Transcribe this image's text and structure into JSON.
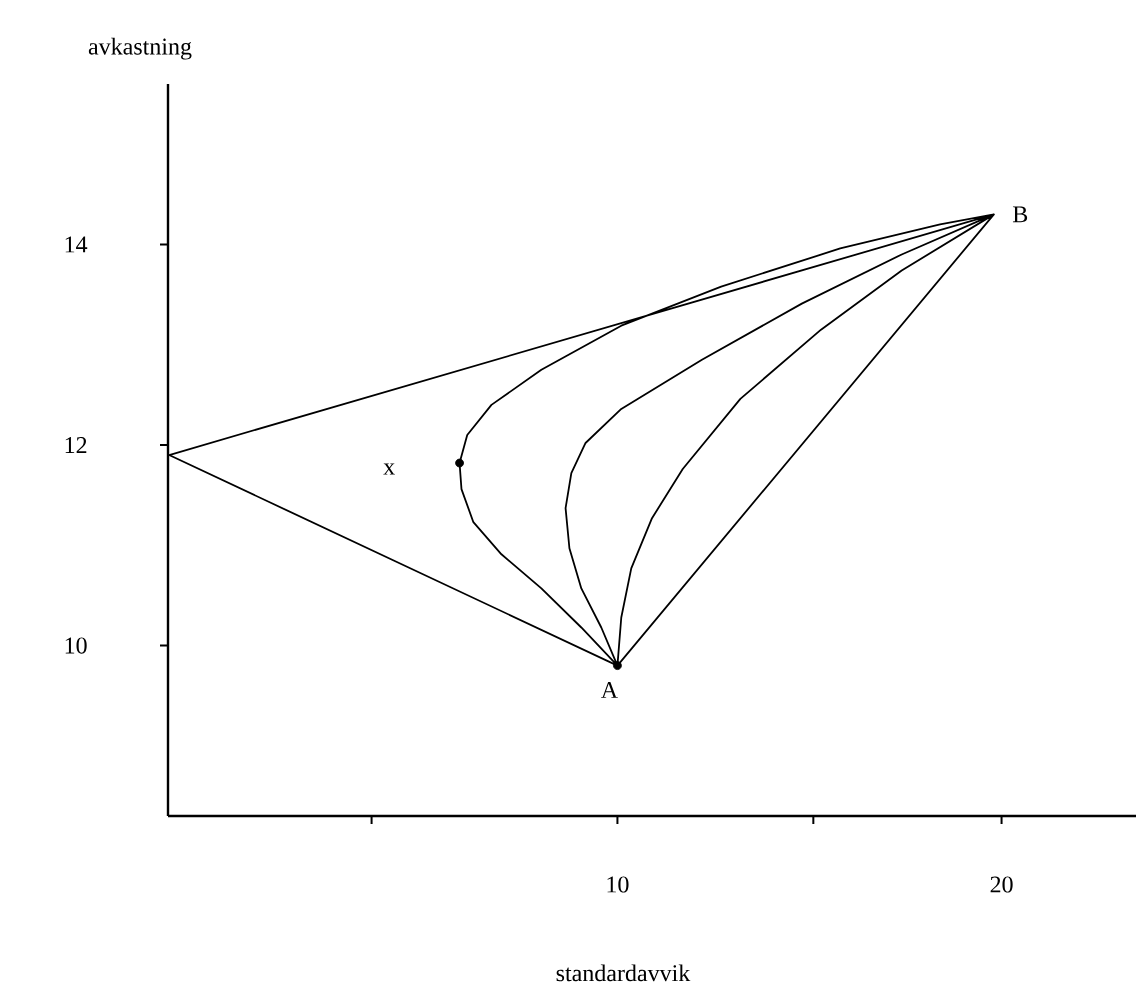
{
  "chart_data": {
    "type": "line",
    "xlabel": "standardavvik",
    "ylabel": "avkastning",
    "xlim": [
      -1.7,
      23.5
    ],
    "ylim": [
      8.3,
      15.6
    ],
    "xticks": [
      {
        "value": 3.6,
        "label": null
      },
      10,
      {
        "value": 15.1,
        "label": null
      },
      20
    ],
    "yticks": [
      10,
      12,
      14
    ],
    "series": [
      {
        "color": "#000000",
        "x": [
          10.0,
          -1.67,
          19.8,
          10.0,
          10.1,
          10.36,
          10.9,
          11.7,
          13.2,
          15.3,
          17.4,
          19.8,
          17.4,
          14.8,
          12.2,
          10.1,
          9.17,
          8.8,
          8.65,
          8.75,
          9.06,
          9.58,
          10.0,
          9.06,
          8.02,
          6.98,
          6.25,
          5.94,
          5.89,
          6.09,
          6.72,
          8.02,
          10.1,
          12.7,
          15.8,
          18.4,
          19.8
        ],
        "values": [
          9.8,
          11.9,
          14.3,
          9.8,
          10.28,
          10.77,
          11.27,
          11.76,
          12.46,
          13.15,
          13.74,
          14.3,
          13.9,
          13.41,
          12.85,
          12.36,
          12.02,
          11.72,
          11.37,
          10.97,
          10.57,
          10.18,
          9.8,
          10.18,
          10.57,
          10.91,
          11.23,
          11.56,
          11.82,
          12.1,
          12.4,
          12.75,
          13.19,
          13.58,
          13.96,
          14.2,
          14.3
        ]
      },
      {
        "type": "scatter",
        "marker": "circle",
        "color": "#000000",
        "x": [
          5.89,
          10.0
        ],
        "values": [
          11.82,
          9.8
        ]
      }
    ],
    "annotations": [
      {
        "text": "A",
        "x": 10.0,
        "y": 9.8
      },
      {
        "text": "B",
        "x": 19.8,
        "y": 14.3
      },
      {
        "text": "x",
        "x": 5.89,
        "y": 11.82
      }
    ]
  }
}
